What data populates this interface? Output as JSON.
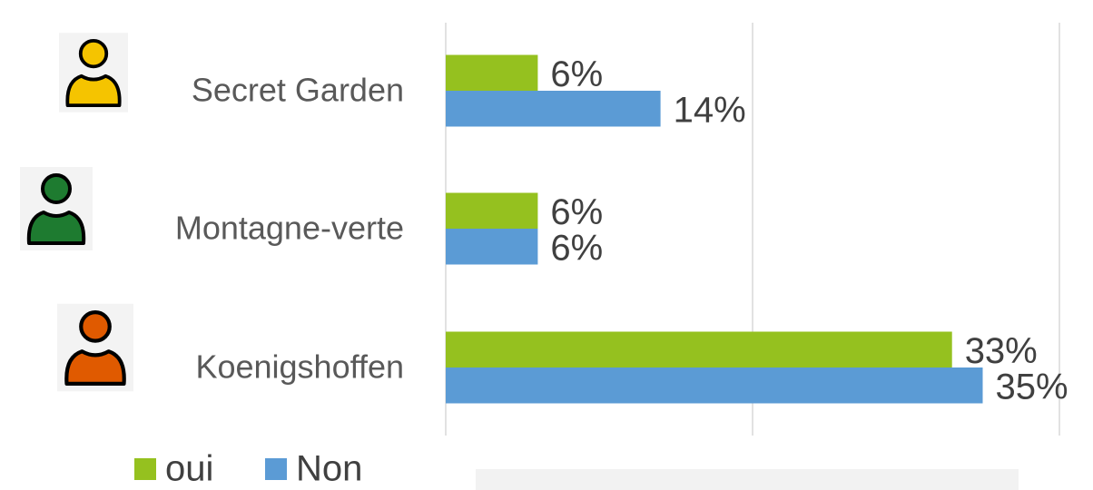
{
  "chart_data": {
    "type": "hbar",
    "categories": [
      "Secret Garden",
      "Montagne-verte",
      "Koenigshoffen"
    ],
    "category_colors": [
      "#f5c400",
      "#1e7b30",
      "#e05a00"
    ],
    "series": [
      {
        "name": "oui",
        "color": "#95c11f",
        "values": [
          6,
          6,
          33
        ],
        "value_labels": [
          "6%",
          "6%",
          "33%"
        ]
      },
      {
        "name": "Non",
        "color": "#5b9bd5",
        "values": [
          14,
          6,
          35
        ],
        "value_labels": [
          "14%",
          "6%",
          "35%"
        ]
      }
    ],
    "xlim": [
      0,
      40
    ],
    "xticks": [
      0,
      20,
      40
    ],
    "grid": true,
    "legend": "bottom"
  }
}
